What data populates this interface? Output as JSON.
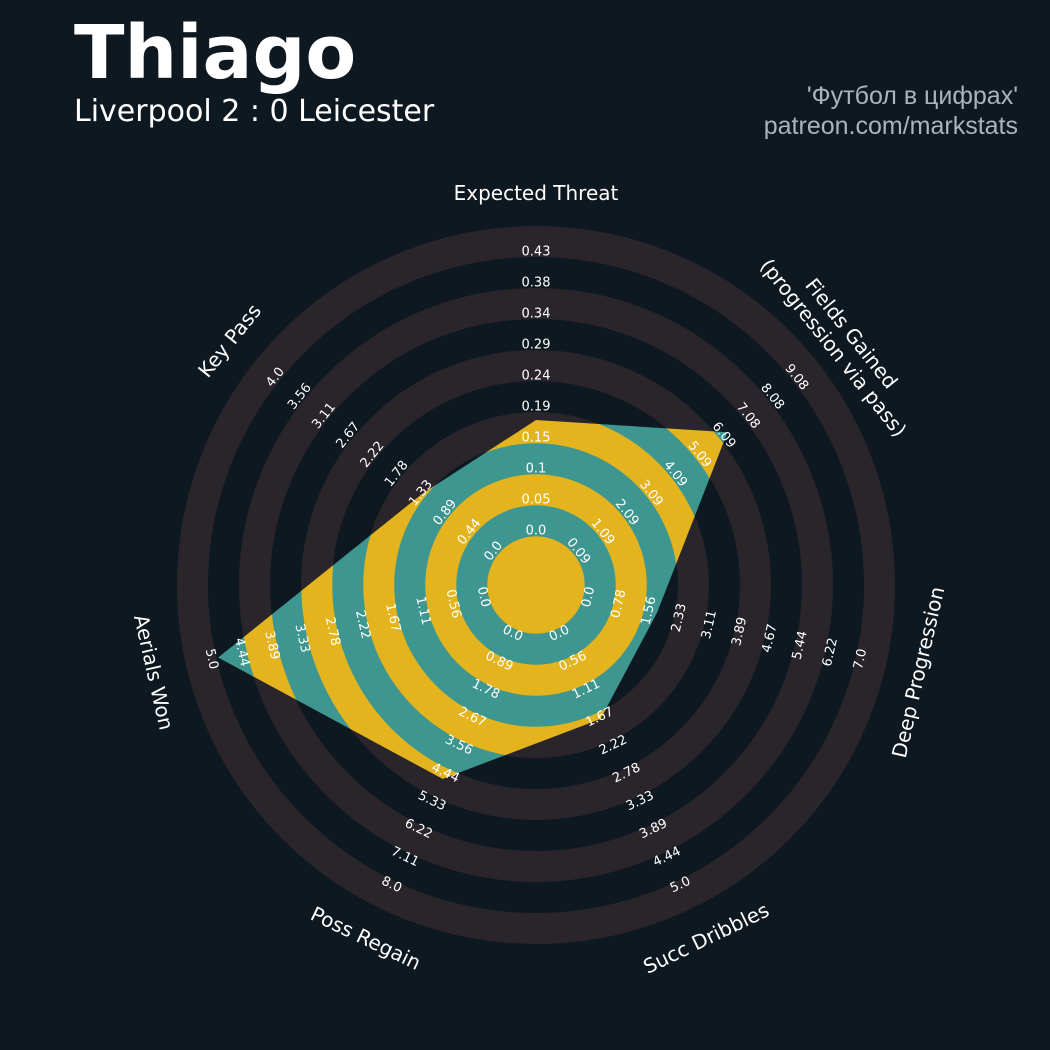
{
  "header": {
    "player": "Thiago",
    "match": "Liverpool 2 : 0 Leicester",
    "credit_line1": "'Футбол в цифрах'",
    "credit_line2": "patreon.com/markstats"
  },
  "chart_data": {
    "type": "radar",
    "colors": {
      "background": "#0e1820",
      "ring": "#2a252b",
      "fill_a": "#e3b41e",
      "fill_b": "#3d968f",
      "text": "#ffffff"
    },
    "axes": [
      {
        "name": "Expected Threat",
        "label_lines": [
          "Expected Threat"
        ],
        "ticks": [
          "0.0",
          "0.05",
          "0.1",
          "0.15",
          "0.19",
          "0.24",
          "0.29",
          "0.34",
          "0.38",
          "0.43"
        ],
        "min": 0,
        "max": 0.43,
        "value": 0.18
      },
      {
        "name": "Fields Gained (progression via pass)",
        "label_lines": [
          "Fields Gained",
          "(progression via pass)"
        ],
        "ticks": [
          "0.09",
          "1.09",
          "2.09",
          "3.09",
          "4.09",
          "5.09",
          "6.09",
          "7.08",
          "8.08",
          "9.08"
        ],
        "min": 0.09,
        "max": 9.08,
        "value": 6.45
      },
      {
        "name": "Deep Progression",
        "label_lines": [
          "Deep Progression"
        ],
        "ticks": [
          "0.0",
          "0.78",
          "1.56",
          "2.33",
          "3.11",
          "3.89",
          "4.67",
          "5.44",
          "6.22",
          "7.0"
        ],
        "min": 0,
        "max": 7.0,
        "value": 1.9
      },
      {
        "name": "Succ Dribbles",
        "label_lines": [
          "Succ Dribbles"
        ],
        "ticks": [
          "0.0",
          "0.56",
          "1.11",
          "1.67",
          "2.22",
          "2.78",
          "3.33",
          "3.89",
          "4.44",
          "5.0"
        ],
        "min": 0,
        "max": 5.0,
        "value": 1.8
      },
      {
        "name": "Poss Regain",
        "label_lines": [
          "Poss Regain"
        ],
        "ticks": [
          "0.0",
          "0.89",
          "1.78",
          "2.67",
          "3.56",
          "4.44",
          "5.33",
          "6.22",
          "7.11",
          "8.0"
        ],
        "min": 0,
        "max": 8.0,
        "value": 4.8
      },
      {
        "name": "Aerials Won",
        "label_lines": [
          "Aerials Won"
        ],
        "ticks": [
          "0.0",
          "0.56",
          "1.11",
          "1.67",
          "2.22",
          "2.78",
          "3.33",
          "3.89",
          "4.44",
          "5.0"
        ],
        "min": 0,
        "max": 5.0,
        "value": 5.0
      },
      {
        "name": "Key Pass",
        "label_lines": [
          "Key Pass"
        ],
        "ticks": [
          "0.0",
          "0.44",
          "0.89",
          "1.33",
          "1.78",
          "2.22",
          "2.67",
          "3.11",
          "3.56",
          "4.0"
        ],
        "min": 0,
        "max": 4.0,
        "value": 1.4
      }
    ]
  }
}
